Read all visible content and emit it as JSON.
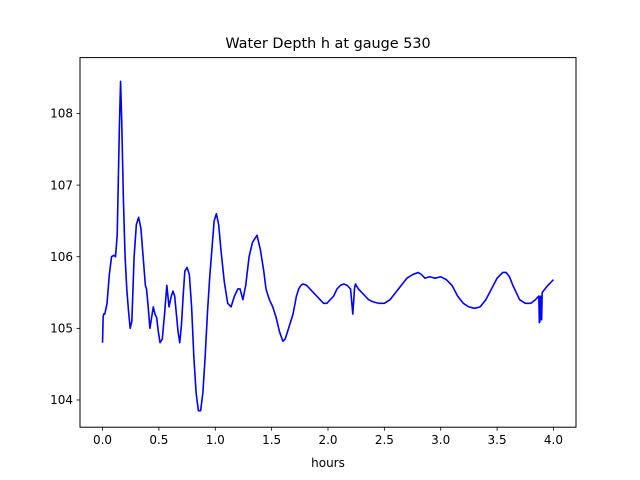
{
  "chart_data": {
    "type": "line",
    "title": "Water Depth h at gauge 530",
    "xlabel": "hours",
    "ylabel": "",
    "xlim": [
      -0.2,
      4.2
    ],
    "ylim": [
      103.62,
      108.78
    ],
    "xticks": [
      0.0,
      0.5,
      1.0,
      1.5,
      2.0,
      2.5,
      3.0,
      3.5,
      4.0
    ],
    "xtick_labels": [
      "0.0",
      "0.5",
      "1.0",
      "1.5",
      "2.0",
      "2.5",
      "3.0",
      "3.5",
      "4.0"
    ],
    "yticks": [
      104,
      105,
      106,
      107,
      108
    ],
    "ytick_labels": [
      "104",
      "105",
      "106",
      "107",
      "108"
    ],
    "grid": false,
    "legend": "none",
    "series_color": "#0000ff",
    "series": [
      {
        "x": [
          0.0,
          0.005,
          0.01,
          0.02,
          0.04,
          0.06,
          0.08,
          0.1,
          0.115,
          0.13,
          0.15,
          0.16,
          0.17,
          0.185,
          0.2,
          0.215,
          0.23,
          0.245,
          0.26,
          0.28,
          0.3,
          0.32,
          0.34,
          0.36,
          0.38,
          0.39,
          0.405,
          0.42,
          0.43,
          0.45,
          0.465,
          0.48,
          0.495,
          0.51,
          0.53,
          0.55,
          0.57,
          0.59,
          0.61,
          0.625,
          0.64,
          0.655,
          0.67,
          0.685,
          0.7,
          0.715,
          0.73,
          0.75,
          0.77,
          0.79,
          0.81,
          0.83,
          0.85,
          0.87,
          0.89,
          0.91,
          0.93,
          0.95,
          0.97,
          0.99,
          1.01,
          1.03,
          1.05,
          1.08,
          1.11,
          1.14,
          1.17,
          1.2,
          1.22,
          1.245,
          1.27,
          1.3,
          1.33,
          1.37,
          1.4,
          1.43,
          1.45,
          1.48,
          1.51,
          1.54,
          1.57,
          1.6,
          1.62,
          1.65,
          1.69,
          1.72,
          1.74,
          1.76,
          1.78,
          1.81,
          1.84,
          1.87,
          1.9,
          1.93,
          1.96,
          1.99,
          2.02,
          2.05,
          2.08,
          2.11,
          2.14,
          2.17,
          2.2,
          2.22,
          2.235,
          2.24,
          2.245,
          2.25,
          2.27,
          2.3,
          2.33,
          2.36,
          2.4,
          2.45,
          2.5,
          2.55,
          2.6,
          2.65,
          2.7,
          2.75,
          2.8,
          2.83,
          2.86,
          2.9,
          2.95,
          3.0,
          3.05,
          3.1,
          3.15,
          3.2,
          3.25,
          3.3,
          3.35,
          3.4,
          3.45,
          3.5,
          3.55,
          3.58,
          3.61,
          3.64,
          3.67,
          3.7,
          3.75,
          3.8,
          3.84,
          3.87,
          3.875,
          3.88,
          3.885,
          3.895,
          3.9,
          3.95,
          4.0
        ],
        "y": [
          104.8,
          105.15,
          105.2,
          105.2,
          105.35,
          105.75,
          106.0,
          106.02,
          106.0,
          106.3,
          107.85,
          108.45,
          107.9,
          106.8,
          106.0,
          105.55,
          105.25,
          105.0,
          105.1,
          106.0,
          106.45,
          106.55,
          106.4,
          106.0,
          105.6,
          105.55,
          105.3,
          105.0,
          105.1,
          105.3,
          105.2,
          105.15,
          104.95,
          104.8,
          104.85,
          105.2,
          105.6,
          105.3,
          105.45,
          105.52,
          105.45,
          105.2,
          104.95,
          104.8,
          105.05,
          105.45,
          105.8,
          105.85,
          105.75,
          105.3,
          104.6,
          104.1,
          103.85,
          103.85,
          104.1,
          104.6,
          105.2,
          105.7,
          106.1,
          106.5,
          106.6,
          106.45,
          106.1,
          105.65,
          105.35,
          105.3,
          105.45,
          105.55,
          105.55,
          105.4,
          105.6,
          106.0,
          106.2,
          106.3,
          106.1,
          105.8,
          105.55,
          105.4,
          105.3,
          105.15,
          104.95,
          104.82,
          104.85,
          105.0,
          105.2,
          105.45,
          105.55,
          105.6,
          105.62,
          105.6,
          105.55,
          105.5,
          105.45,
          105.4,
          105.35,
          105.35,
          105.4,
          105.45,
          105.55,
          105.6,
          105.62,
          105.6,
          105.55,
          105.2,
          105.55,
          105.6,
          105.62,
          105.6,
          105.55,
          105.5,
          105.45,
          105.4,
          105.37,
          105.35,
          105.35,
          105.4,
          105.5,
          105.6,
          105.7,
          105.75,
          105.78,
          105.75,
          105.7,
          105.72,
          105.7,
          105.72,
          105.68,
          105.6,
          105.45,
          105.35,
          105.3,
          105.28,
          105.3,
          105.4,
          105.55,
          105.7,
          105.78,
          105.78,
          105.72,
          105.6,
          105.5,
          105.4,
          105.35,
          105.35,
          105.4,
          105.45,
          105.08,
          105.1,
          105.45,
          105.12,
          105.5,
          105.6,
          105.68
        ]
      }
    ]
  }
}
